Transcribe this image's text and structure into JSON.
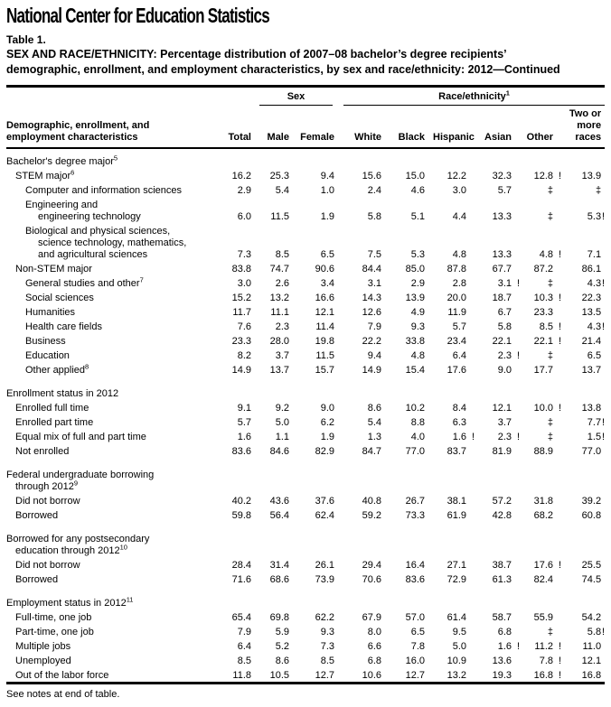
{
  "logo": "National Center for Education Statistics",
  "table_label": "Table 1.",
  "title_line1": "SEX AND RACE/ETHNICITY: Percentage distribution of 2007–08 bachelor’s degree recipients’",
  "title_line2": "demographic, enrollment, and employment characteristics, by sex and race/ethnicity: 2012—Continued",
  "footer_note": "See notes at end of table.",
  "header": {
    "stub_lines": [
      "Demographic, enrollment, and",
      "employment characteristics"
    ],
    "sex": {
      "label": "Sex"
    },
    "race": {
      "label": "Race/ethnicity",
      "sup": "1"
    },
    "columns": [
      "Total",
      "Male",
      "Female",
      "White",
      "Black",
      "Hispanic",
      "Asian",
      "Other"
    ],
    "last_column_lines": [
      "Two or",
      "more",
      "races"
    ]
  },
  "rows": [
    {
      "type": "section",
      "lines": [
        {
          "t": "Bachelor's degree major",
          "sup": "5",
          "ind": 0
        }
      ],
      "values": null
    },
    {
      "type": "data",
      "lines": [
        {
          "t": "STEM major",
          "sup": "6",
          "ind": 1
        }
      ],
      "values": [
        "16.2",
        "25.3",
        "9.4",
        "15.6",
        "15.0",
        "12.2",
        "32.3",
        "12.8 !",
        "13.9"
      ]
    },
    {
      "type": "data",
      "lines": [
        {
          "t": "Computer and information sciences",
          "ind": 2
        }
      ],
      "values": [
        "2.9",
        "5.4",
        "1.0",
        "2.4",
        "4.6",
        "3.0",
        "5.7",
        "‡",
        "‡"
      ]
    },
    {
      "type": "data",
      "lines": [
        {
          "t": "Engineering and",
          "ind": 2
        },
        {
          "t": "engineering technology",
          "ind": 3
        }
      ],
      "values": [
        "6.0",
        "11.5",
        "1.9",
        "5.8",
        "5.1",
        "4.4",
        "13.3",
        "‡",
        "5.3 !"
      ]
    },
    {
      "type": "data",
      "lines": [
        {
          "t": "Biological and physical sciences,",
          "ind": 2
        },
        {
          "t": "science technology, mathematics,",
          "ind": 3
        },
        {
          "t": "and agricultural sciences",
          "ind": 3
        }
      ],
      "values": [
        "7.3",
        "8.5",
        "6.5",
        "7.5",
        "5.3",
        "4.8",
        "13.3",
        "4.8 !",
        "7.1"
      ]
    },
    {
      "type": "data",
      "lines": [
        {
          "t": "Non-STEM major",
          "ind": 1
        }
      ],
      "values": [
        "83.8",
        "74.7",
        "90.6",
        "84.4",
        "85.0",
        "87.8",
        "67.7",
        "87.2",
        "86.1"
      ]
    },
    {
      "type": "data",
      "lines": [
        {
          "t": "General studies and other",
          "sup": "7",
          "ind": 2
        }
      ],
      "values": [
        "3.0",
        "2.6",
        "3.4",
        "3.1",
        "2.9",
        "2.8",
        "3.1 !",
        "‡",
        "4.3 !"
      ]
    },
    {
      "type": "data",
      "lines": [
        {
          "t": "Social sciences",
          "ind": 2
        }
      ],
      "values": [
        "15.2",
        "13.2",
        "16.6",
        "14.3",
        "13.9",
        "20.0",
        "18.7",
        "10.3 !",
        "22.3"
      ]
    },
    {
      "type": "data",
      "lines": [
        {
          "t": "Humanities",
          "ind": 2
        }
      ],
      "values": [
        "11.7",
        "11.1",
        "12.1",
        "12.6",
        "4.9",
        "11.9",
        "6.7",
        "23.3",
        "13.5"
      ]
    },
    {
      "type": "data",
      "lines": [
        {
          "t": "Health care fields",
          "ind": 2
        }
      ],
      "values": [
        "7.6",
        "2.3",
        "11.4",
        "7.9",
        "9.3",
        "5.7",
        "5.8",
        "8.5 !",
        "4.3 !"
      ]
    },
    {
      "type": "data",
      "lines": [
        {
          "t": "Business",
          "ind": 2
        }
      ],
      "values": [
        "23.3",
        "28.0",
        "19.8",
        "22.2",
        "33.8",
        "23.4",
        "22.1",
        "22.1 !",
        "21.4"
      ]
    },
    {
      "type": "data",
      "lines": [
        {
          "t": "Education",
          "ind": 2
        }
      ],
      "values": [
        "8.2",
        "3.7",
        "11.5",
        "9.4",
        "4.8",
        "6.4",
        "2.3 !",
        "‡",
        "6.5"
      ]
    },
    {
      "type": "data",
      "lines": [
        {
          "t": "Other applied",
          "sup": "8",
          "ind": 2
        }
      ],
      "values": [
        "14.9",
        "13.7",
        "15.7",
        "14.9",
        "15.4",
        "17.6",
        "9.0",
        "17.7",
        "13.7"
      ]
    },
    {
      "type": "spacer"
    },
    {
      "type": "section",
      "lines": [
        {
          "t": "Enrollment status in 2012",
          "ind": 0
        }
      ],
      "values": null
    },
    {
      "type": "data",
      "lines": [
        {
          "t": "Enrolled full time",
          "ind": 1
        }
      ],
      "values": [
        "9.1",
        "9.2",
        "9.0",
        "8.6",
        "10.2",
        "8.4",
        "12.1",
        "10.0 !",
        "13.8"
      ]
    },
    {
      "type": "data",
      "lines": [
        {
          "t": "Enrolled part time",
          "ind": 1
        }
      ],
      "values": [
        "5.7",
        "5.0",
        "6.2",
        "5.4",
        "8.8",
        "6.3",
        "3.7",
        "‡",
        "7.7 !"
      ]
    },
    {
      "type": "data",
      "lines": [
        {
          "t": "Equal mix of full and part time",
          "ind": 1
        }
      ],
      "values": [
        "1.6",
        "1.1",
        "1.9",
        "1.3",
        "4.0",
        "1.6 !",
        "2.3 !",
        "‡",
        "1.5 !"
      ]
    },
    {
      "type": "data",
      "lines": [
        {
          "t": "Not enrolled",
          "ind": 1
        }
      ],
      "values": [
        "83.6",
        "84.6",
        "82.9",
        "84.7",
        "77.0",
        "83.7",
        "81.9",
        "88.9",
        "77.0"
      ]
    },
    {
      "type": "spacer"
    },
    {
      "type": "section",
      "lines": [
        {
          "t": "Federal undergraduate borrowing",
          "ind": 0
        },
        {
          "t": "through 2012",
          "sup": "9",
          "ind": 1
        }
      ],
      "values": null
    },
    {
      "type": "data",
      "lines": [
        {
          "t": "Did not borrow",
          "ind": 1
        }
      ],
      "values": [
        "40.2",
        "43.6",
        "37.6",
        "40.8",
        "26.7",
        "38.1",
        "57.2",
        "31.8",
        "39.2"
      ]
    },
    {
      "type": "data",
      "lines": [
        {
          "t": "Borrowed",
          "ind": 1
        }
      ],
      "values": [
        "59.8",
        "56.4",
        "62.4",
        "59.2",
        "73.3",
        "61.9",
        "42.8",
        "68.2",
        "60.8"
      ]
    },
    {
      "type": "spacer"
    },
    {
      "type": "section",
      "lines": [
        {
          "t": "Borrowed for any postsecondary",
          "ind": 0
        },
        {
          "t": "education through 2012",
          "sup": "10",
          "ind": 1
        }
      ],
      "values": null
    },
    {
      "type": "data",
      "lines": [
        {
          "t": "Did not borrow",
          "ind": 1
        }
      ],
      "values": [
        "28.4",
        "31.4",
        "26.1",
        "29.4",
        "16.4",
        "27.1",
        "38.7",
        "17.6 !",
        "25.5"
      ]
    },
    {
      "type": "data",
      "lines": [
        {
          "t": "Borrowed",
          "ind": 1
        }
      ],
      "values": [
        "71.6",
        "68.6",
        "73.9",
        "70.6",
        "83.6",
        "72.9",
        "61.3",
        "82.4",
        "74.5"
      ]
    },
    {
      "type": "spacer"
    },
    {
      "type": "section",
      "lines": [
        {
          "t": "Employment status in 2012",
          "sup": "11",
          "ind": 0
        }
      ],
      "values": null
    },
    {
      "type": "data",
      "lines": [
        {
          "t": "Full-time, one job",
          "ind": 1
        }
      ],
      "values": [
        "65.4",
        "69.8",
        "62.2",
        "67.9",
        "57.0",
        "61.4",
        "58.7",
        "55.9",
        "54.2"
      ]
    },
    {
      "type": "data",
      "lines": [
        {
          "t": "Part-time, one job",
          "ind": 1
        }
      ],
      "values": [
        "7.9",
        "5.9",
        "9.3",
        "8.0",
        "6.5",
        "9.5",
        "6.8",
        "‡",
        "5.8 !"
      ]
    },
    {
      "type": "data",
      "lines": [
        {
          "t": "Multiple jobs",
          "ind": 1
        }
      ],
      "values": [
        "6.4",
        "5.2",
        "7.3",
        "6.6",
        "7.8",
        "5.0",
        "1.6 !",
        "11.2 !",
        "11.0"
      ]
    },
    {
      "type": "data",
      "lines": [
        {
          "t": "Unemployed",
          "ind": 1
        }
      ],
      "values": [
        "8.5",
        "8.6",
        "8.5",
        "6.8",
        "16.0",
        "10.9",
        "13.6",
        "7.8 !",
        "12.1"
      ]
    },
    {
      "type": "data",
      "lines": [
        {
          "t": "Out of the labor force",
          "ind": 1
        }
      ],
      "values": [
        "11.8",
        "10.5",
        "12.7",
        "10.6",
        "12.7",
        "13.2",
        "19.3",
        "16.8 !",
        "16.8"
      ]
    }
  ]
}
